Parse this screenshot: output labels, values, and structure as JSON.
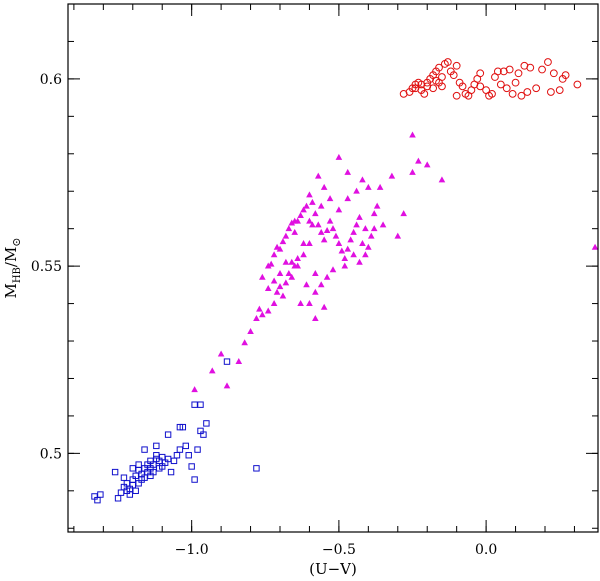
{
  "chart_data": {
    "type": "scatter",
    "xlabel": "(U−V)",
    "ylabel_main": "M",
    "ylabel_sub": "HB",
    "ylabel_denom": "/M",
    "ylabel_denom_sub": "⊙",
    "xlim": [
      -1.42,
      0.38
    ],
    "ylim": [
      0.479,
      0.62
    ],
    "xticks": [
      {
        "value": -1.0,
        "label": "−1.0"
      },
      {
        "value": -0.5,
        "label": "−0.5"
      },
      {
        "value": 0.0,
        "label": "0.0"
      }
    ],
    "yticks": [
      {
        "value": 0.5,
        "label": "0.5"
      },
      {
        "value": 0.55,
        "label": "0.55"
      },
      {
        "value": 0.6,
        "label": "0.6"
      }
    ],
    "x_minor_step": 0.1,
    "y_minor_step": 0.01,
    "series": [
      {
        "marker": "square",
        "color": "#1010cc",
        "points": [
          [
            -1.33,
            0.4885
          ],
          [
            -1.32,
            0.4875
          ],
          [
            -1.31,
            0.489
          ],
          [
            -1.25,
            0.488
          ],
          [
            -1.24,
            0.4895
          ],
          [
            -1.23,
            0.491
          ],
          [
            -1.22,
            0.49
          ],
          [
            -1.22,
            0.492
          ],
          [
            -1.21,
            0.489
          ],
          [
            -1.21,
            0.4905
          ],
          [
            -1.2,
            0.4915
          ],
          [
            -1.2,
            0.493
          ],
          [
            -1.19,
            0.49
          ],
          [
            -1.19,
            0.494
          ],
          [
            -1.18,
            0.492
          ],
          [
            -1.18,
            0.4955
          ],
          [
            -1.18,
            0.497
          ],
          [
            -1.17,
            0.493
          ],
          [
            -1.17,
            0.4945
          ],
          [
            -1.16,
            0.496
          ],
          [
            -1.16,
            0.4935
          ],
          [
            -1.15,
            0.495
          ],
          [
            -1.15,
            0.497
          ],
          [
            -1.14,
            0.494
          ],
          [
            -1.14,
            0.496
          ],
          [
            -1.14,
            0.498
          ],
          [
            -1.13,
            0.495
          ],
          [
            -1.13,
            0.497
          ],
          [
            -1.12,
            0.4985
          ],
          [
            -1.12,
            0.4995
          ],
          [
            -1.11,
            0.496
          ],
          [
            -1.11,
            0.498
          ],
          [
            -1.1,
            0.499
          ],
          [
            -1.1,
            0.4965
          ],
          [
            -1.09,
            0.4975
          ],
          [
            -1.08,
            0.4985
          ],
          [
            -1.07,
            0.495
          ],
          [
            -1.06,
            0.498
          ],
          [
            -1.05,
            0.4995
          ],
          [
            -1.04,
            0.501
          ],
          [
            -1.02,
            0.502
          ],
          [
            -1.01,
            0.4995
          ],
          [
            -1.0,
            0.4965
          ],
          [
            -0.99,
            0.493
          ],
          [
            -0.98,
            0.501
          ],
          [
            -0.97,
            0.506
          ],
          [
            -0.96,
            0.505
          ],
          [
            -0.95,
            0.508
          ],
          [
            -1.03,
            0.507
          ],
          [
            -1.04,
            0.507
          ],
          [
            -1.08,
            0.505
          ],
          [
            -1.12,
            0.502
          ],
          [
            -1.16,
            0.501
          ],
          [
            -1.2,
            0.496
          ],
          [
            -1.26,
            0.495
          ],
          [
            -1.23,
            0.4935
          ],
          [
            -0.99,
            0.513
          ],
          [
            -0.97,
            0.513
          ],
          [
            -0.88,
            0.5245
          ],
          [
            -0.78,
            0.496
          ]
        ]
      },
      {
        "marker": "triangle",
        "color": "#e010e0",
        "points": [
          [
            -0.99,
            0.517
          ],
          [
            -0.93,
            0.522
          ],
          [
            -0.9,
            0.5265
          ],
          [
            -0.88,
            0.518
          ],
          [
            -0.84,
            0.5245
          ],
          [
            -0.82,
            0.5295
          ],
          [
            -0.8,
            0.5325
          ],
          [
            -0.78,
            0.536
          ],
          [
            -0.77,
            0.5385
          ],
          [
            -0.76,
            0.537
          ],
          [
            -0.74,
            0.538
          ],
          [
            -0.72,
            0.54
          ],
          [
            -0.71,
            0.543
          ],
          [
            -0.7,
            0.5445
          ],
          [
            -0.69,
            0.542
          ],
          [
            -0.68,
            0.5455
          ],
          [
            -0.67,
            0.548
          ],
          [
            -0.66,
            0.547
          ],
          [
            -0.65,
            0.55
          ],
          [
            -0.64,
            0.552
          ],
          [
            -0.73,
            0.5505
          ],
          [
            -0.72,
            0.553
          ],
          [
            -0.7,
            0.5545
          ],
          [
            -0.69,
            0.5565
          ],
          [
            -0.68,
            0.558
          ],
          [
            -0.67,
            0.56
          ],
          [
            -0.66,
            0.5615
          ],
          [
            -0.65,
            0.559
          ],
          [
            -0.64,
            0.562
          ],
          [
            -0.63,
            0.5635
          ],
          [
            -0.62,
            0.565
          ],
          [
            -0.61,
            0.566
          ],
          [
            -0.6,
            0.569
          ],
          [
            -0.59,
            0.567
          ],
          [
            -0.58,
            0.564
          ],
          [
            -0.57,
            0.561
          ],
          [
            -0.56,
            0.559
          ],
          [
            -0.55,
            0.557
          ],
          [
            -0.54,
            0.5595
          ],
          [
            -0.53,
            0.562
          ],
          [
            -0.52,
            0.56
          ],
          [
            -0.51,
            0.558
          ],
          [
            -0.5,
            0.556
          ],
          [
            -0.49,
            0.554
          ],
          [
            -0.48,
            0.552
          ],
          [
            -0.47,
            0.5545
          ],
          [
            -0.46,
            0.557
          ],
          [
            -0.45,
            0.559
          ],
          [
            -0.44,
            0.561
          ],
          [
            -0.43,
            0.563
          ],
          [
            -0.42,
            0.556
          ],
          [
            -0.41,
            0.553
          ],
          [
            -0.4,
            0.555
          ],
          [
            -0.39,
            0.558
          ],
          [
            -0.38,
            0.56
          ],
          [
            -0.37,
            0.566
          ],
          [
            -0.36,
            0.571
          ],
          [
            -0.42,
            0.573
          ],
          [
            -0.44,
            0.57
          ],
          [
            -0.47,
            0.568
          ],
          [
            -0.5,
            0.565
          ],
          [
            -0.53,
            0.568
          ],
          [
            -0.55,
            0.571
          ],
          [
            -0.57,
            0.574
          ],
          [
            -0.5,
            0.579
          ],
          [
            -0.47,
            0.575
          ],
          [
            -0.4,
            0.571
          ],
          [
            -0.32,
            0.574
          ],
          [
            -0.25,
            0.575
          ],
          [
            -0.23,
            0.578
          ],
          [
            -0.2,
            0.577
          ],
          [
            -0.15,
            0.573
          ],
          [
            -0.25,
            0.585
          ],
          [
            -0.28,
            0.564
          ],
          [
            -0.3,
            0.558
          ],
          [
            -0.35,
            0.561
          ],
          [
            -0.38,
            0.564
          ],
          [
            -0.6,
            0.556
          ],
          [
            -0.62,
            0.553
          ],
          [
            -0.64,
            0.55
          ],
          [
            -0.66,
            0.551
          ],
          [
            -0.7,
            0.548
          ],
          [
            -0.72,
            0.546
          ],
          [
            -0.74,
            0.544
          ],
          [
            -0.61,
            0.545
          ],
          [
            -0.58,
            0.543
          ],
          [
            -0.56,
            0.545
          ],
          [
            -0.54,
            0.547
          ],
          [
            -0.52,
            0.549
          ],
          [
            -0.48,
            0.55
          ],
          [
            -0.58,
            0.548
          ],
          [
            -0.63,
            0.54
          ],
          [
            -0.6,
            0.54
          ],
          [
            -0.55,
            0.539
          ],
          [
            -0.58,
            0.536
          ],
          [
            -0.62,
            0.556
          ],
          [
            -0.65,
            0.562
          ],
          [
            -0.68,
            0.551
          ],
          [
            -0.71,
            0.555
          ],
          [
            -0.74,
            0.55
          ],
          [
            -0.76,
            0.547
          ],
          [
            -0.56,
            0.566
          ],
          [
            -0.59,
            0.561
          ],
          [
            -0.6,
            0.562
          ],
          [
            -0.45,
            0.553
          ],
          [
            -0.43,
            0.551
          ],
          [
            -0.41,
            0.56
          ],
          [
            0.37,
            0.555
          ]
        ]
      },
      {
        "marker": "circle",
        "color": "#e01010",
        "points": [
          [
            -0.28,
            0.596
          ],
          [
            -0.26,
            0.5965
          ],
          [
            -0.25,
            0.5975
          ],
          [
            -0.24,
            0.5985
          ],
          [
            -0.23,
            0.599
          ],
          [
            -0.22,
            0.597
          ],
          [
            -0.21,
            0.596
          ],
          [
            -0.2,
            0.598
          ],
          [
            -0.19,
            0.6
          ],
          [
            -0.18,
            0.601
          ],
          [
            -0.17,
            0.5995
          ],
          [
            -0.17,
            0.602
          ],
          [
            -0.16,
            0.603
          ],
          [
            -0.15,
            0.6005
          ],
          [
            -0.14,
            0.604
          ],
          [
            -0.13,
            0.6045
          ],
          [
            -0.12,
            0.602
          ],
          [
            -0.11,
            0.601
          ],
          [
            -0.1,
            0.6035
          ],
          [
            -0.09,
            0.599
          ],
          [
            -0.08,
            0.598
          ],
          [
            -0.07,
            0.596
          ],
          [
            -0.06,
            0.5955
          ],
          [
            -0.05,
            0.597
          ],
          [
            -0.04,
            0.5985
          ],
          [
            -0.03,
            0.6
          ],
          [
            -0.02,
            0.6015
          ],
          [
            0.0,
            0.597
          ],
          [
            0.01,
            0.5955
          ],
          [
            0.02,
            0.596
          ],
          [
            0.03,
            0.6005
          ],
          [
            0.04,
            0.602
          ],
          [
            0.05,
            0.5985
          ],
          [
            0.06,
            0.602
          ],
          [
            0.07,
            0.5975
          ],
          [
            0.08,
            0.6025
          ],
          [
            0.09,
            0.596
          ],
          [
            0.1,
            0.599
          ],
          [
            0.11,
            0.6015
          ],
          [
            0.12,
            0.5955
          ],
          [
            0.13,
            0.6035
          ],
          [
            0.14,
            0.5965
          ],
          [
            0.15,
            0.603
          ],
          [
            0.17,
            0.5975
          ],
          [
            0.19,
            0.6025
          ],
          [
            0.21,
            0.6045
          ],
          [
            0.22,
            0.5965
          ],
          [
            0.23,
            0.6015
          ],
          [
            0.25,
            0.597
          ],
          [
            0.26,
            0.6
          ],
          [
            0.27,
            0.601
          ],
          [
            0.31,
            0.5985
          ],
          [
            -0.1,
            0.5955
          ],
          [
            -0.15,
            0.598
          ],
          [
            -0.2,
            0.599
          ],
          [
            -0.24,
            0.5975
          ],
          [
            -0.22,
            0.5985
          ],
          [
            -0.18,
            0.5975
          ],
          [
            -0.16,
            0.599
          ],
          [
            -0.02,
            0.598
          ]
        ]
      }
    ]
  }
}
